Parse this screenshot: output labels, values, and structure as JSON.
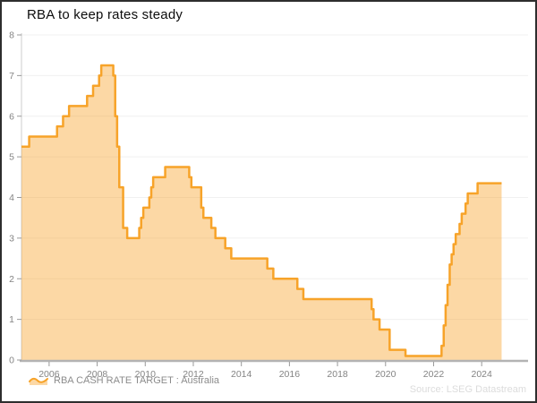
{
  "window": {
    "background": "#ffffff",
    "border_color": "#2e2e2e"
  },
  "header": {
    "title": "RBA to keep rates steady"
  },
  "chart_data": {
    "type": "area",
    "step": true,
    "title": "RBA to keep rates steady",
    "xlabel": "",
    "ylabel": "",
    "xlim": [
      2004.85,
      2025.93
    ],
    "ylim": [
      0,
      8
    ],
    "x_ticks": [
      2006,
      2008,
      2010,
      2012,
      2014,
      2016,
      2018,
      2020,
      2022,
      2024
    ],
    "y_ticks": [
      0,
      1,
      2,
      3,
      4,
      5,
      6,
      7,
      8
    ],
    "grid": "horizontal",
    "grid_color": "#f0f0f0",
    "axis_color": "#b3b3b3",
    "tick_color": "#999999",
    "tick_label_color": "#848484",
    "legend_position": "bottom-left",
    "source": "Source: LSEG Datastream",
    "series": [
      {
        "name": "RBA CASH RATE TARGET : Australia",
        "color": "#F7A329",
        "fill_color": "#F7A329",
        "fill_opacity": 0.42,
        "line_width": 2.5,
        "end_x": 2024.83,
        "points": [
          [
            2004.85,
            5.25
          ],
          [
            2005.17,
            5.5
          ],
          [
            2006.33,
            5.75
          ],
          [
            2006.58,
            6.0
          ],
          [
            2006.83,
            6.25
          ],
          [
            2007.58,
            6.5
          ],
          [
            2007.83,
            6.75
          ],
          [
            2008.08,
            7.0
          ],
          [
            2008.17,
            7.25
          ],
          [
            2008.67,
            7.0
          ],
          [
            2008.75,
            6.0
          ],
          [
            2008.83,
            5.25
          ],
          [
            2008.92,
            4.25
          ],
          [
            2009.08,
            3.25
          ],
          [
            2009.25,
            3.0
          ],
          [
            2009.75,
            3.25
          ],
          [
            2009.83,
            3.5
          ],
          [
            2009.92,
            3.75
          ],
          [
            2010.17,
            4.0
          ],
          [
            2010.25,
            4.25
          ],
          [
            2010.33,
            4.5
          ],
          [
            2010.83,
            4.75
          ],
          [
            2011.83,
            4.5
          ],
          [
            2011.92,
            4.25
          ],
          [
            2012.33,
            3.75
          ],
          [
            2012.42,
            3.5
          ],
          [
            2012.75,
            3.25
          ],
          [
            2012.92,
            3.0
          ],
          [
            2013.33,
            2.75
          ],
          [
            2013.58,
            2.5
          ],
          [
            2015.08,
            2.25
          ],
          [
            2015.33,
            2.0
          ],
          [
            2016.33,
            1.75
          ],
          [
            2016.58,
            1.5
          ],
          [
            2019.42,
            1.25
          ],
          [
            2019.5,
            1.0
          ],
          [
            2019.75,
            0.75
          ],
          [
            2020.17,
            0.25
          ],
          [
            2020.83,
            0.1
          ],
          [
            2022.33,
            0.35
          ],
          [
            2022.42,
            0.85
          ],
          [
            2022.5,
            1.35
          ],
          [
            2022.58,
            1.85
          ],
          [
            2022.67,
            2.35
          ],
          [
            2022.75,
            2.6
          ],
          [
            2022.83,
            2.85
          ],
          [
            2022.92,
            3.1
          ],
          [
            2023.08,
            3.35
          ],
          [
            2023.17,
            3.6
          ],
          [
            2023.33,
            3.85
          ],
          [
            2023.42,
            4.1
          ],
          [
            2023.83,
            4.35
          ]
        ]
      }
    ]
  }
}
